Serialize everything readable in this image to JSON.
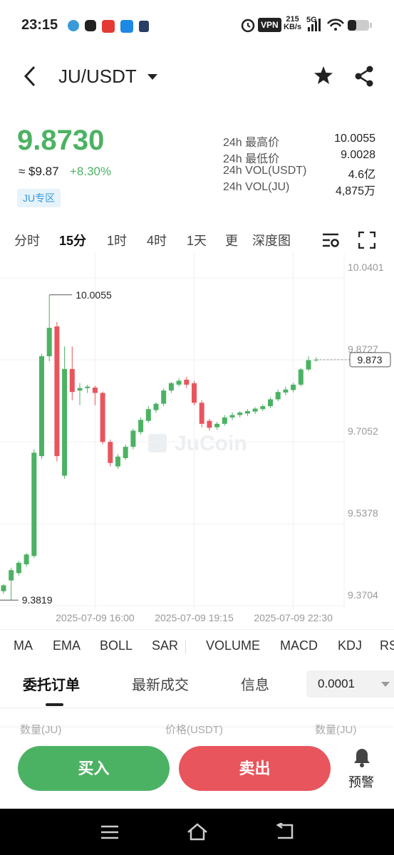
{
  "status_bar": {
    "time": "23:15",
    "vpn": "VPN",
    "speed": "215",
    "speed_unit": "KB/s",
    "network": "5G"
  },
  "header": {
    "pair": "JU/USDT"
  },
  "ticker": {
    "price": "9.8730",
    "usd": "≈ $9.87",
    "change": "+8.30%",
    "zone": "JU专区",
    "stats": [
      {
        "label": "24h 最高价",
        "value": "10.0055"
      },
      {
        "label": "24h 最低价",
        "value": "9.0028"
      },
      {
        "label": "24h VOL(USDT)",
        "value": "4.6亿"
      },
      {
        "label": "24h VOL(JU)",
        "value": "4,875万"
      }
    ]
  },
  "intervals": [
    "分时",
    "15分",
    "1时",
    "4时",
    "1天",
    "更",
    "深度图"
  ],
  "chart_data": {
    "type": "candlestick",
    "watermark": "JuCoin",
    "categories": [
      null,
      null,
      null,
      null,
      null,
      null,
      null,
      null,
      null,
      null,
      null,
      null,
      "2025-07-09 16:00",
      null,
      null,
      null,
      null,
      null,
      null,
      null,
      null,
      null,
      null,
      null,
      null,
      "2025-07-09 19:15",
      null,
      null,
      null,
      null,
      null,
      null,
      null,
      null,
      null,
      null,
      null,
      null,
      "2025-07-09 22:30",
      null,
      null,
      null
    ],
    "open": [
      9.4,
      9.422,
      9.437,
      9.455,
      9.472,
      9.676,
      9.88,
      9.941,
      9.636,
      9.854,
      9.81,
      9.815,
      9.816,
      9.805,
      9.705,
      9.655,
      9.672,
      9.695,
      9.725,
      9.748,
      9.77,
      9.783,
      9.81,
      9.822,
      9.832,
      9.825,
      9.785,
      9.748,
      9.735,
      9.742,
      9.755,
      9.76,
      9.763,
      9.767,
      9.772,
      9.778,
      9.792,
      9.806,
      9.811,
      9.822,
      9.853,
      9.872
    ],
    "high": [
      9.415,
      9.448,
      9.462,
      9.478,
      9.69,
      9.885,
      10.0055,
      9.95,
      9.9,
      9.9,
      9.825,
      9.822,
      9.82,
      9.808,
      9.71,
      9.68,
      9.7,
      9.732,
      9.755,
      9.778,
      9.786,
      9.815,
      9.828,
      9.835,
      9.838,
      9.83,
      9.79,
      9.752,
      9.746,
      9.76,
      9.765,
      9.768,
      9.772,
      9.776,
      9.782,
      9.796,
      9.812,
      9.818,
      9.826,
      9.856,
      9.88,
      9.878
    ],
    "low": [
      9.395,
      9.3819,
      9.432,
      9.45,
      9.468,
      9.67,
      9.87,
      9.665,
      9.63,
      9.79,
      9.78,
      9.805,
      9.78,
      9.7,
      9.655,
      9.65,
      9.668,
      9.69,
      9.72,
      9.744,
      9.765,
      9.778,
      9.805,
      9.818,
      9.815,
      9.78,
      9.735,
      9.728,
      9.73,
      9.738,
      9.75,
      9.755,
      9.758,
      9.762,
      9.768,
      9.774,
      9.788,
      9.8,
      9.806,
      9.818,
      9.85,
      9.869
    ],
    "close": [
      9.412,
      9.443,
      9.458,
      9.475,
      9.683,
      9.88,
      9.938,
      9.676,
      9.854,
      9.807,
      9.815,
      9.818,
      9.805,
      9.705,
      9.662,
      9.675,
      9.695,
      9.728,
      9.75,
      9.772,
      9.783,
      9.81,
      9.825,
      9.83,
      9.822,
      9.785,
      9.742,
      9.734,
      9.742,
      9.755,
      9.76,
      9.765,
      9.768,
      9.773,
      9.778,
      9.792,
      9.807,
      9.812,
      9.822,
      9.853,
      9.872,
      9.873
    ],
    "up_color": "#4cb263",
    "down_color": "#e8555d",
    "ylim": [
      9.3633,
      10.0838
    ],
    "yticks": [
      10.0401,
      9.8727,
      9.7052,
      9.5378,
      9.3704
    ],
    "grid": true
  },
  "indicators": [
    "MA",
    "EMA",
    "BOLL",
    "SAR",
    "VOLUME",
    "MACD",
    "KDJ",
    "RSI"
  ],
  "order_tabs": [
    "委托订单",
    "最新成交",
    "信息"
  ],
  "precision": "0.0001",
  "book_header": [
    "数量(JU)",
    "价格(USDT)",
    "数量(JU)"
  ],
  "actions": {
    "buy": "买入",
    "sell": "卖出",
    "alert": "预警"
  }
}
